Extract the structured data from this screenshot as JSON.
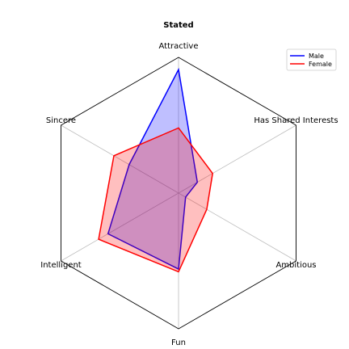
{
  "chart_data": {
    "type": "radar",
    "title": "Stated",
    "axes": [
      "Attractive",
      "Has Shared Interests",
      "Ambitious",
      "Fun",
      "Intelligent",
      "Sincere"
    ],
    "rlim": [
      0,
      1
    ],
    "grid": true,
    "legend_position": "top-right",
    "series": [
      {
        "name": "Male",
        "color": "#0000ff",
        "fill": "#0000ff",
        "fill_opacity": 0.25,
        "values": [
          0.91,
          0.16,
          0.06,
          0.56,
          0.6,
          0.42
        ]
      },
      {
        "name": "Female",
        "color": "#ff0000",
        "fill": "#ff0000",
        "fill_opacity": 0.25,
        "values": [
          0.48,
          0.29,
          0.24,
          0.58,
          0.68,
          0.55
        ]
      }
    ]
  }
}
